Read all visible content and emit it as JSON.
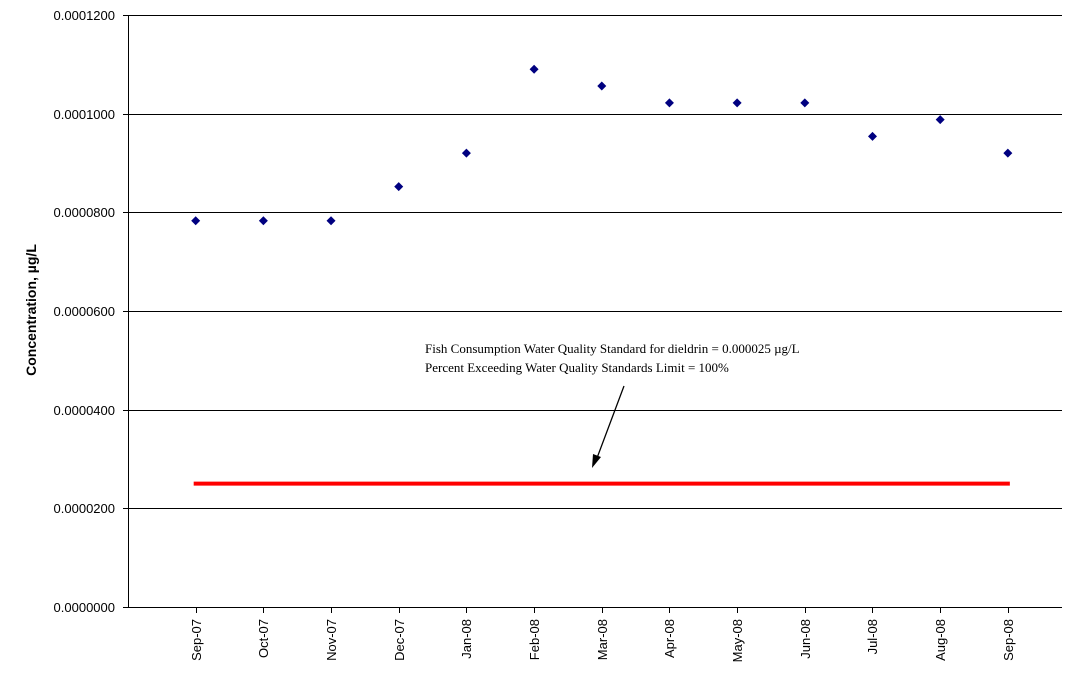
{
  "chart_data": {
    "type": "scatter",
    "title": "",
    "xlabel": "",
    "ylabel": "Concentration, µg/L",
    "categories": [
      "Sep-07",
      "Oct-07",
      "Nov-07",
      "Dec-07",
      "Jan-08",
      "Feb-08",
      "Mar-08",
      "Apr-08",
      "May-08",
      "Jun-08",
      "Jul-08",
      "Aug-08",
      "Sep-08"
    ],
    "series": [
      {
        "values": [
          7.83e-05,
          7.83e-05,
          7.83e-05,
          8.52e-05,
          9.2e-05,
          0.000109,
          0.0001056,
          0.0001022,
          0.0001022,
          0.0001022,
          9.54e-05,
          9.88e-05,
          9.2e-05
        ],
        "color": "#000080",
        "marker": "diamond"
      }
    ],
    "reference_line": {
      "value": 2.5e-05,
      "color": "#ff0000",
      "from": "Sep-07",
      "to": "Sep-08"
    },
    "ylim": [
      0,
      0.00012
    ],
    "yticks": [
      0,
      2e-05,
      4e-05,
      6e-05,
      8e-05,
      0.0001,
      0.00012
    ],
    "ytick_labels": [
      "0.0000000",
      "0.0000200",
      "0.0000400",
      "0.0000600",
      "0.0000800",
      "0.0001000",
      "0.0001200"
    ],
    "grid": true,
    "annotations": [
      "Fish Consumption Water Quality Standard for dieldrin = 0.000025 µg/L",
      "Percent Exceeding  Water Quality Standards Limit = 100%"
    ]
  }
}
